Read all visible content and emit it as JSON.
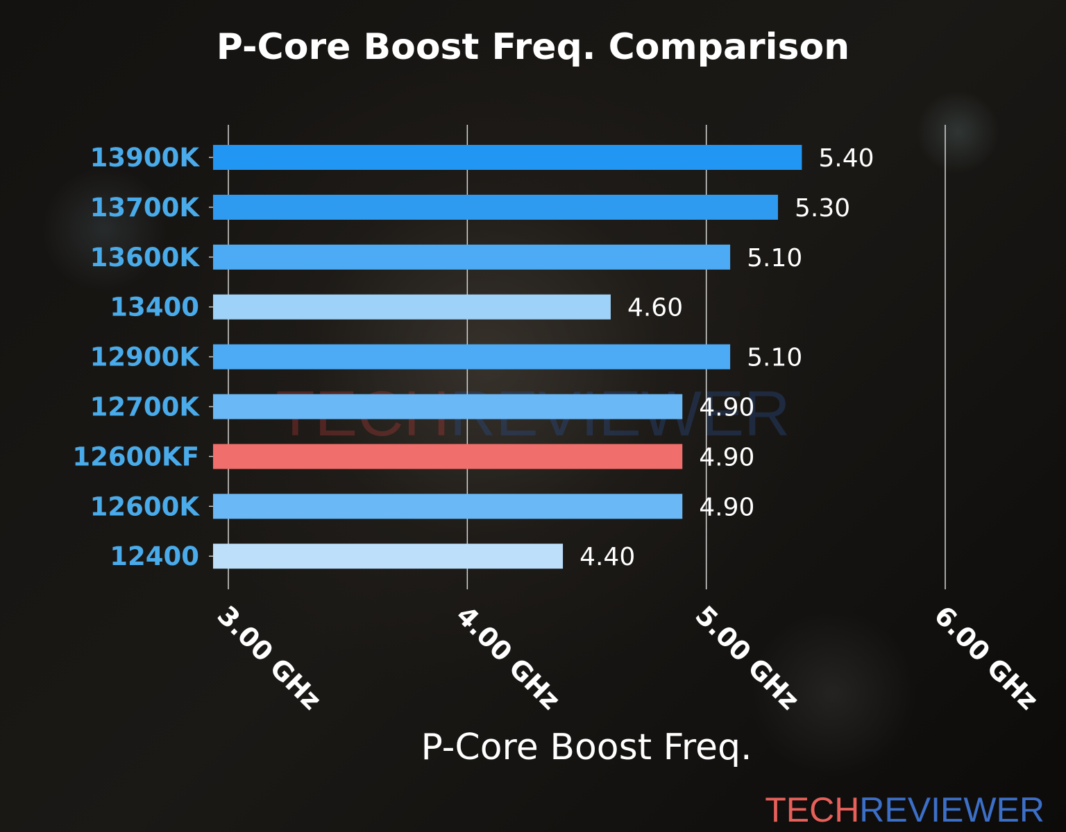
{
  "chart_data": {
    "type": "bar",
    "orientation": "horizontal",
    "title": "P-Core Boost Freq. Comparison",
    "xlabel": "P-Core Boost Freq.",
    "ylabel": "",
    "categories": [
      "13900K",
      "13700K",
      "13600K",
      "13400",
      "12900K",
      "12700K",
      "12600KF",
      "12600K",
      "12400"
    ],
    "values": [
      5.4,
      5.3,
      5.1,
      4.6,
      5.1,
      4.9,
      4.9,
      4.9,
      4.4
    ],
    "value_labels": [
      "5.40",
      "5.30",
      "5.10",
      "4.60",
      "5.10",
      "4.90",
      "4.90",
      "4.90",
      "4.40"
    ],
    "bar_colors": [
      "#2196F3",
      "#2F9BF0",
      "#4DABF5",
      "#9FD2F8",
      "#4DABF5",
      "#6AB8F5",
      "#F06E6B",
      "#6AB8F5",
      "#BDDFFA"
    ],
    "xticks": [
      3,
      4,
      5,
      6
    ],
    "xtick_labels": [
      "3.00 GHz",
      "4.00 GHz",
      "5.00 GHz",
      "6.00 GHz"
    ],
    "xlim": [
      2.936,
      6.0
    ],
    "grid": "vertical",
    "label_color": "#4AABEB"
  },
  "watermark": {
    "part1": "TECH",
    "part2": "REVIEWER",
    "color1": "#E8605A",
    "color2": "#3C6FC8"
  }
}
